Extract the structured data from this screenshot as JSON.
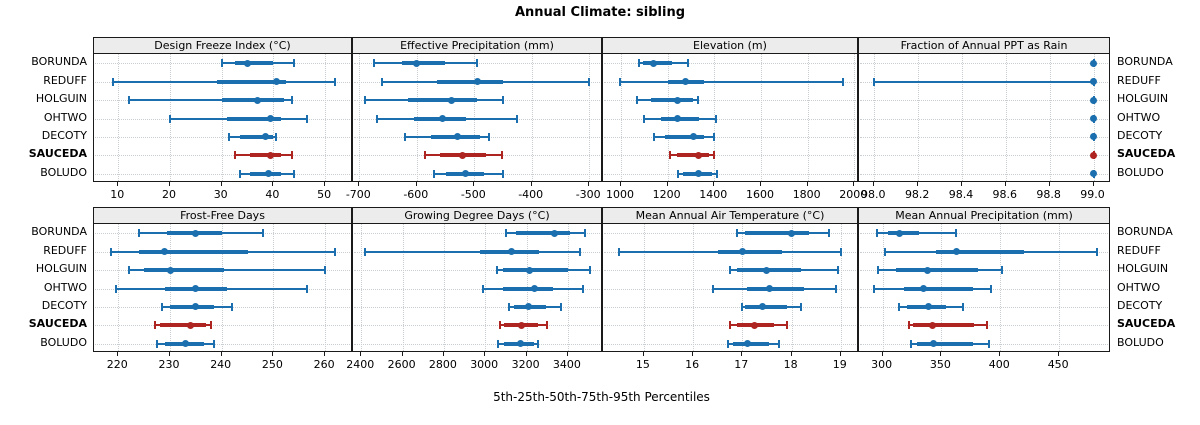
{
  "title": "Annual Climate: sibling",
  "caption": "5th-25th-50th-75th-95th Percentiles",
  "sites": [
    "BORUNDA",
    "REDUFF",
    "HOLGUIN",
    "OHTWO",
    "DECOTY",
    "SAUCEDA",
    "BOLUDO"
  ],
  "highlight_site": "SAUCEDA",
  "colors": {
    "series": "#1b6fae",
    "highlight": "#ae2420",
    "strip_bg": "#ececec",
    "grid": "#c9ced3",
    "panel_border": "#1a1a1a"
  },
  "chart_data": [
    {
      "type": "dotplot-percentile",
      "title": "Design Freeze Index (°C)",
      "domain": [
        5.3,
        55.4
      ],
      "ticks": [
        10,
        20,
        30,
        40,
        50
      ],
      "tick_labels": [
        "10",
        "20",
        "30",
        "40",
        "50"
      ],
      "percentiles": [
        "p5",
        "p25",
        "p50",
        "p75",
        "p95"
      ],
      "values": [
        [
          30,
          32.5,
          35,
          40,
          44
        ],
        [
          9,
          29,
          40.5,
          42.5,
          52
        ],
        [
          12,
          30,
          37,
          42,
          43.5
        ],
        [
          20,
          31,
          39.5,
          41.5,
          46.5
        ],
        [
          31.5,
          33.5,
          38.5,
          40,
          40.5
        ],
        [
          32.5,
          35.5,
          39.5,
          41.5,
          43.5
        ],
        [
          33.5,
          35.5,
          39,
          41.5,
          44
        ]
      ]
    },
    {
      "type": "dotplot-percentile",
      "title": "Effective Precipitation (mm)",
      "domain": [
        -711,
        -276
      ],
      "ticks": [
        -700,
        -600,
        -500,
        -400,
        -300
      ],
      "tick_labels": [
        "-700",
        "-600",
        "-500",
        "-400",
        "-300"
      ],
      "percentiles": [
        "p5",
        "p25",
        "p50",
        "p75",
        "p95"
      ],
      "values": [
        [
          -675,
          -625,
          -600,
          -550,
          -495
        ],
        [
          -660,
          -565,
          -495,
          -450,
          -300
        ],
        [
          -690,
          -615,
          -540,
          -495,
          -450
        ],
        [
          -670,
          -605,
          -555,
          -515,
          -425
        ],
        [
          -620,
          -575,
          -530,
          -490,
          -475
        ],
        [
          -585,
          -560,
          -520,
          -480,
          -452
        ],
        [
          -570,
          -550,
          -515,
          -483,
          -450
        ]
      ]
    },
    {
      "type": "dotplot-percentile",
      "title": "Elevation (m)",
      "domain": [
        923,
        2020
      ],
      "ticks": [
        1000,
        1200,
        1400,
        1600,
        1800,
        2000
      ],
      "tick_labels": [
        "1000",
        "1200",
        "1400",
        "1600",
        "1800",
        "2000"
      ],
      "percentiles": [
        "p5",
        "p25",
        "p50",
        "p75",
        "p95"
      ],
      "values": [
        [
          1075,
          1095,
          1140,
          1220,
          1285
        ],
        [
          995,
          1200,
          1275,
          1355,
          1950
        ],
        [
          1070,
          1130,
          1240,
          1310,
          1330
        ],
        [
          1100,
          1170,
          1240,
          1335,
          1405
        ],
        [
          1140,
          1190,
          1310,
          1355,
          1400
        ],
        [
          1210,
          1240,
          1330,
          1378,
          1400
        ],
        [
          1243,
          1265,
          1330,
          1390,
          1410
        ]
      ]
    },
    {
      "type": "dotplot-percentile",
      "title": "Fraction of Annual PPT as Rain",
      "domain": [
        97.93,
        99.08
      ],
      "ticks": [
        98.0,
        98.2,
        98.4,
        98.6,
        98.8,
        99.0
      ],
      "tick_labels": [
        "98.0",
        "98.2",
        "98.4",
        "98.6",
        "98.8",
        "99.0"
      ],
      "percentiles": [
        "p5",
        "p25",
        "p50",
        "p75",
        "p95"
      ],
      "values": [
        [
          99,
          99,
          99,
          99,
          99
        ],
        [
          98,
          99,
          99,
          99,
          99
        ],
        [
          99,
          99,
          99,
          99,
          99
        ],
        [
          99,
          99,
          99,
          99,
          99
        ],
        [
          99,
          99,
          99,
          99,
          99
        ],
        [
          99,
          99,
          99,
          99,
          99
        ],
        [
          99,
          99,
          99,
          99,
          99
        ]
      ]
    },
    {
      "type": "dotplot-percentile",
      "title": "Frost-Free Days",
      "domain": [
        215.3,
        265.4
      ],
      "ticks": [
        220,
        230,
        240,
        250,
        260
      ],
      "tick_labels": [
        "220",
        "230",
        "240",
        "250",
        "260"
      ],
      "percentiles": [
        "p5",
        "p25",
        "p50",
        "p75",
        "p95"
      ],
      "values": [
        [
          224,
          229.5,
          235,
          240,
          248
        ],
        [
          218.5,
          224,
          229,
          245,
          262
        ],
        [
          222,
          225,
          230,
          240.5,
          260
        ],
        [
          219.5,
          229,
          235,
          241,
          256.5
        ],
        [
          228.5,
          230,
          235,
          238.5,
          242
        ],
        [
          227,
          228,
          234,
          237,
          238
        ],
        [
          227.5,
          229,
          233,
          236.5,
          238.5
        ]
      ]
    },
    {
      "type": "dotplot-percentile",
      "title": "Growing Degree Days (°C)",
      "domain": [
        2360,
        3570
      ],
      "ticks": [
        2400,
        2600,
        2800,
        3000,
        3200,
        3400
      ],
      "tick_labels": [
        "2400",
        "2600",
        "2800",
        "3000",
        "3200",
        "3400"
      ],
      "percentiles": [
        "p5",
        "p25",
        "p50",
        "p75",
        "p95"
      ],
      "values": [
        [
          3100,
          3150,
          3335,
          3410,
          3485
        ],
        [
          2420,
          2975,
          3125,
          3260,
          3460
        ],
        [
          3055,
          3085,
          3215,
          3400,
          3505
        ],
        [
          2990,
          3085,
          3240,
          3330,
          3475
        ],
        [
          3115,
          3140,
          3210,
          3295,
          3365
        ],
        [
          3070,
          3090,
          3175,
          3255,
          3300
        ],
        [
          3060,
          3090,
          3170,
          3235,
          3255
        ]
      ]
    },
    {
      "type": "dotplot-percentile",
      "title": "Mean Annual Air Temperature (°C)",
      "domain": [
        14.17,
        19.37
      ],
      "ticks": [
        15,
        16,
        17,
        18,
        19
      ],
      "tick_labels": [
        "15",
        "16",
        "17",
        "18",
        "19"
      ],
      "percentiles": [
        "p5",
        "p25",
        "p50",
        "p75",
        "p95"
      ],
      "values": [
        [
          16.9,
          17.05,
          18.0,
          18.35,
          18.75
        ],
        [
          14.5,
          16.5,
          17.0,
          17.8,
          19.0
        ],
        [
          16.75,
          16.9,
          17.5,
          18.2,
          18.95
        ],
        [
          16.4,
          17.1,
          17.55,
          18.25,
          18.9
        ],
        [
          17.0,
          17.05,
          17.4,
          17.9,
          18.2
        ],
        [
          16.75,
          16.9,
          17.25,
          17.65,
          17.9
        ],
        [
          16.7,
          16.8,
          17.1,
          17.55,
          17.75
        ]
      ]
    },
    {
      "type": "dotplot-percentile",
      "title": "Mean Annual Precipitation (mm)",
      "domain": [
        280,
        494
      ],
      "ticks": [
        300,
        350,
        400,
        450
      ],
      "tick_labels": [
        "300",
        "350",
        "400",
        "450"
      ],
      "percentiles": [
        "p5",
        "p25",
        "p50",
        "p75",
        "p95"
      ],
      "values": [
        [
          295,
          305,
          314,
          331,
          362
        ],
        [
          302,
          345,
          363,
          420,
          482
        ],
        [
          296,
          311,
          338,
          381,
          401
        ],
        [
          293,
          318,
          335,
          377,
          392
        ],
        [
          314,
          321,
          339,
          354,
          368
        ],
        [
          322,
          326,
          342,
          378,
          389
        ],
        [
          324,
          329,
          343.5,
          377,
          390
        ]
      ]
    }
  ]
}
